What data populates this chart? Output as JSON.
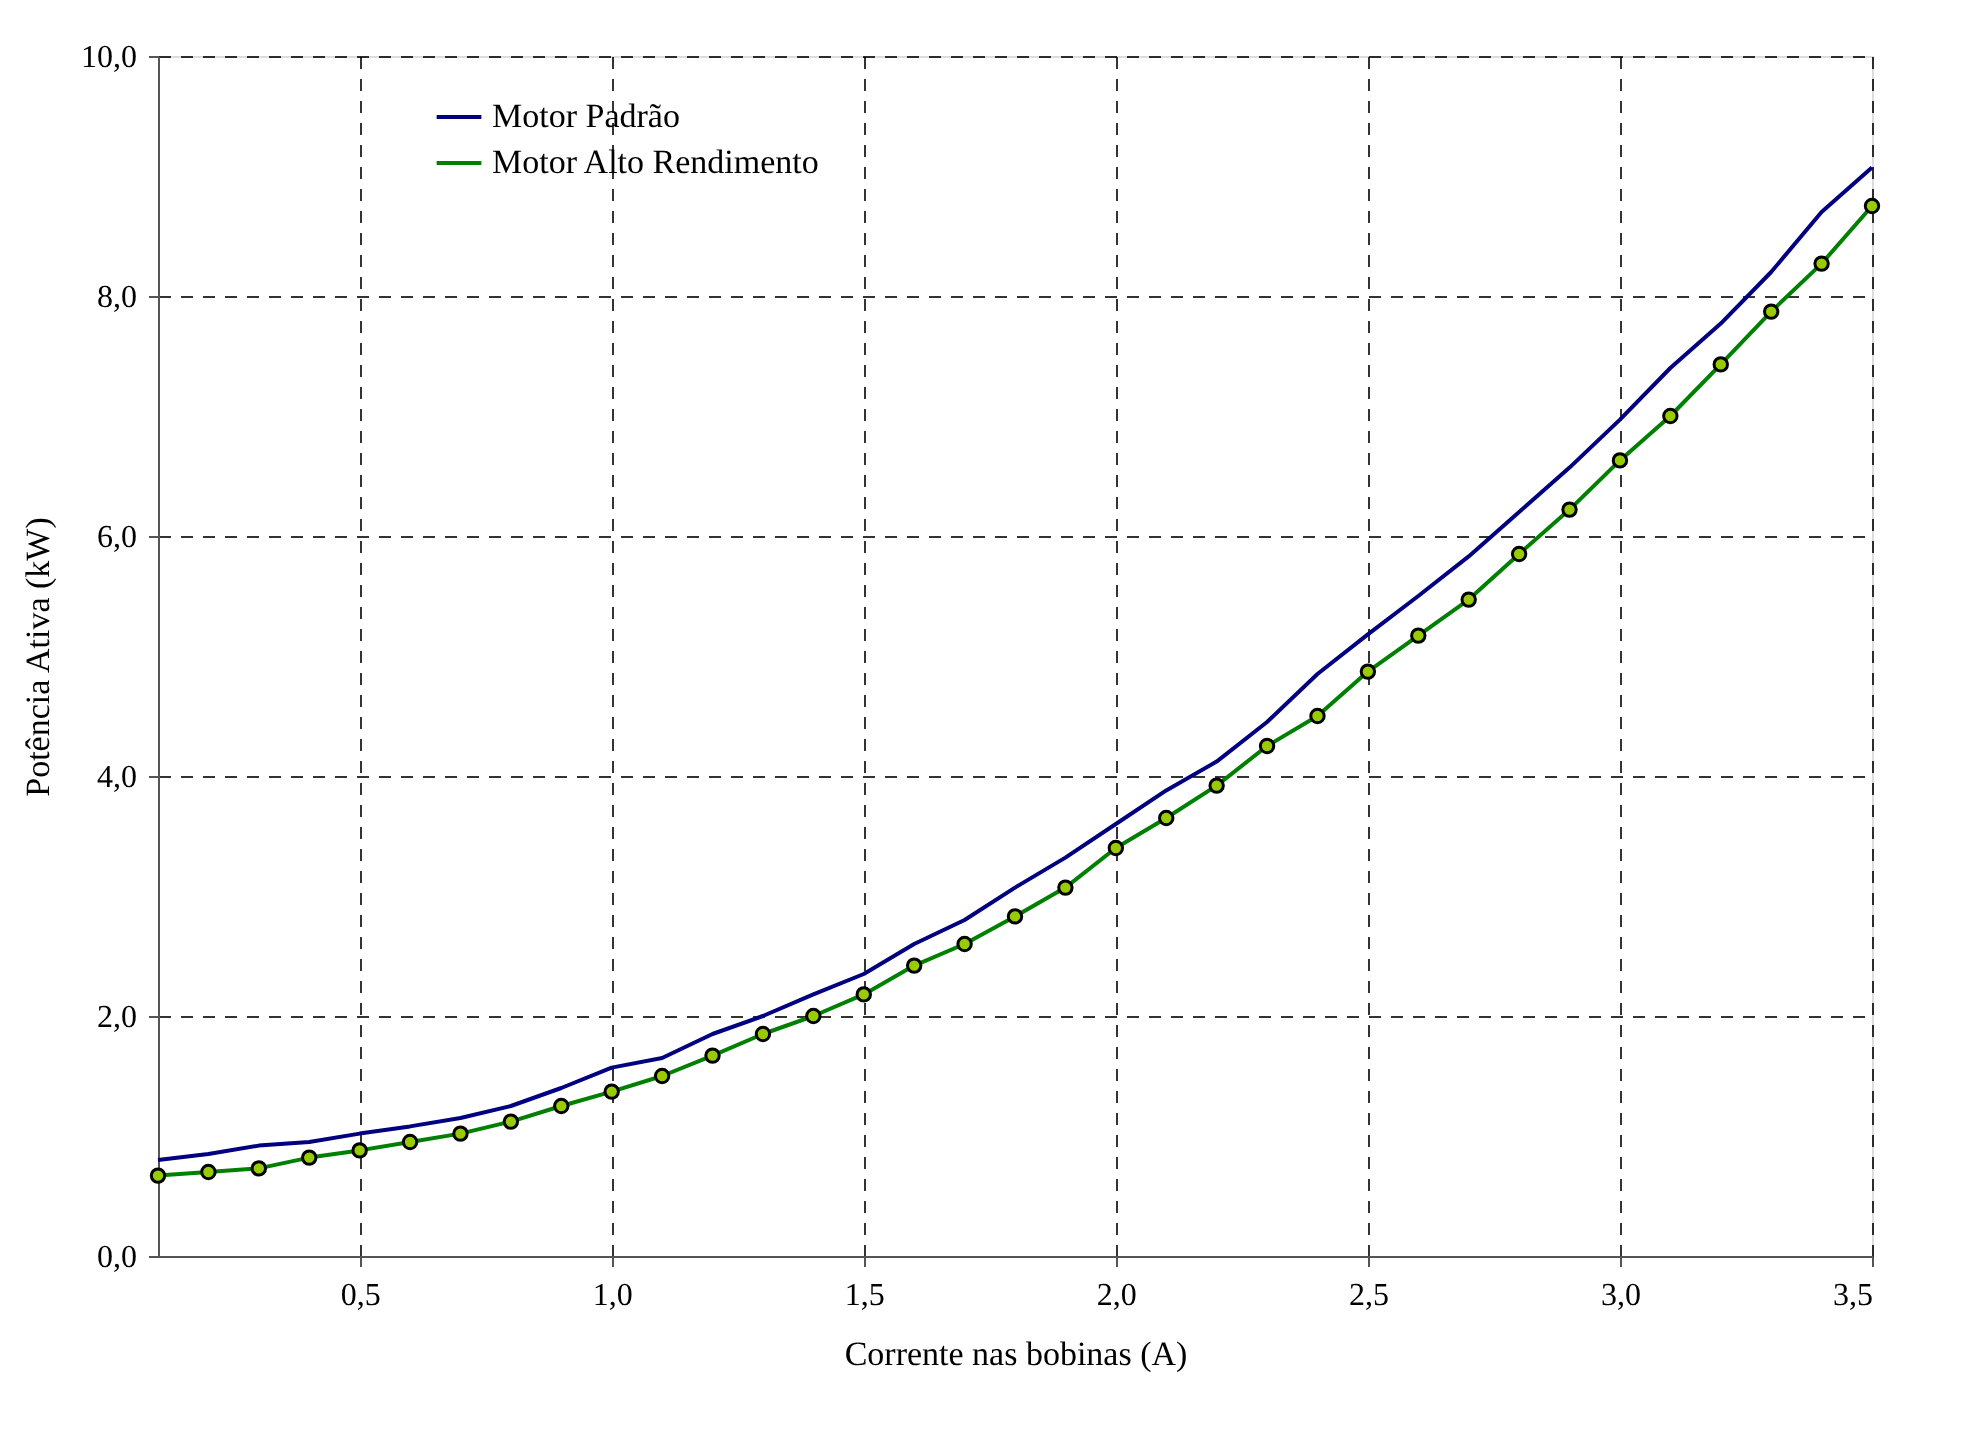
{
  "chart_data": {
    "type": "line",
    "xlabel": "Corrente nas bobinas (A)",
    "ylabel": "Potência Ativa (kW)",
    "x": [
      0.1,
      0.2,
      0.3,
      0.4,
      0.5,
      0.6,
      0.7,
      0.8,
      0.9,
      1.0,
      1.1,
      1.2,
      1.3,
      1.4,
      1.5,
      1.6,
      1.7,
      1.8,
      1.9,
      2.0,
      2.1,
      2.2,
      2.3,
      2.4,
      2.5,
      2.6,
      2.7,
      2.8,
      2.9,
      3.0,
      3.1,
      3.2,
      3.3,
      3.4,
      3.5
    ],
    "series": [
      {
        "name": "Motor Padrão",
        "color": "#000080",
        "marker": "none",
        "values": [
          0.8,
          0.85,
          0.92,
          0.95,
          1.02,
          1.08,
          1.15,
          1.25,
          1.4,
          1.57,
          1.65,
          1.85,
          2.0,
          2.18,
          2.35,
          2.6,
          2.8,
          3.07,
          3.32,
          3.6,
          3.88,
          4.12,
          4.45,
          4.85,
          5.18,
          5.5,
          5.83,
          6.2,
          6.57,
          6.97,
          7.4,
          7.77,
          8.2,
          8.7,
          9.07
        ]
      },
      {
        "name": "Motor Alto Rendimento",
        "color": "#008000",
        "marker": "circle",
        "values": [
          0.67,
          0.7,
          0.73,
          0.82,
          0.88,
          0.95,
          1.02,
          1.12,
          1.25,
          1.37,
          1.5,
          1.67,
          1.85,
          2.0,
          2.18,
          2.42,
          2.6,
          2.83,
          3.07,
          3.4,
          3.65,
          3.92,
          4.25,
          4.5,
          4.87,
          5.17,
          5.47,
          5.85,
          6.22,
          6.63,
          7.0,
          7.43,
          7.87,
          8.27,
          8.75
        ]
      }
    ],
    "xlim": [
      0.1,
      3.5
    ],
    "xticks": [
      {
        "value": 0.5,
        "label": "0,5"
      },
      {
        "value": 1.0,
        "label": "1,0"
      },
      {
        "value": 1.5,
        "label": "1,5"
      },
      {
        "value": 2.0,
        "label": "2,0"
      },
      {
        "value": 2.5,
        "label": "2,5"
      },
      {
        "value": 3.0,
        "label": "3,0"
      },
      {
        "value": 3.5,
        "label": "3,5"
      }
    ],
    "ylim": [
      0,
      10
    ],
    "yticks": [
      {
        "value": 0,
        "label": "0,0"
      },
      {
        "value": 2,
        "label": "2,0"
      },
      {
        "value": 4,
        "label": "4,0"
      },
      {
        "value": 6,
        "label": "6,0"
      },
      {
        "value": 8,
        "label": "8,0"
      },
      {
        "value": 10,
        "label": "10,0"
      }
    ],
    "grid": true,
    "legend": "top left",
    "line_style": "solid"
  }
}
